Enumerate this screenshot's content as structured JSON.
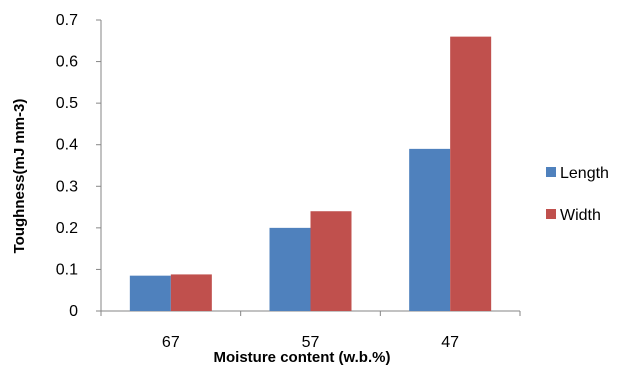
{
  "chart_data": {
    "type": "bar",
    "title": "",
    "xlabel": "Moisture content (w.b.%)",
    "ylabel": "Toughness(mJ mm-3)",
    "categories": [
      "67",
      "57",
      "47"
    ],
    "series": [
      {
        "name": "Length",
        "values": [
          0.085,
          0.2,
          0.39
        ],
        "color": "#4F81BD"
      },
      {
        "name": "Width",
        "values": [
          0.088,
          0.24,
          0.66
        ],
        "color": "#C0504D"
      }
    ],
    "ylim": [
      0,
      0.7
    ],
    "yticks": [
      "0",
      "0.1",
      "0.2",
      "0.3",
      "0.4",
      "0.5",
      "0.6",
      "0.7"
    ],
    "grid": false,
    "legend_position": "right"
  }
}
